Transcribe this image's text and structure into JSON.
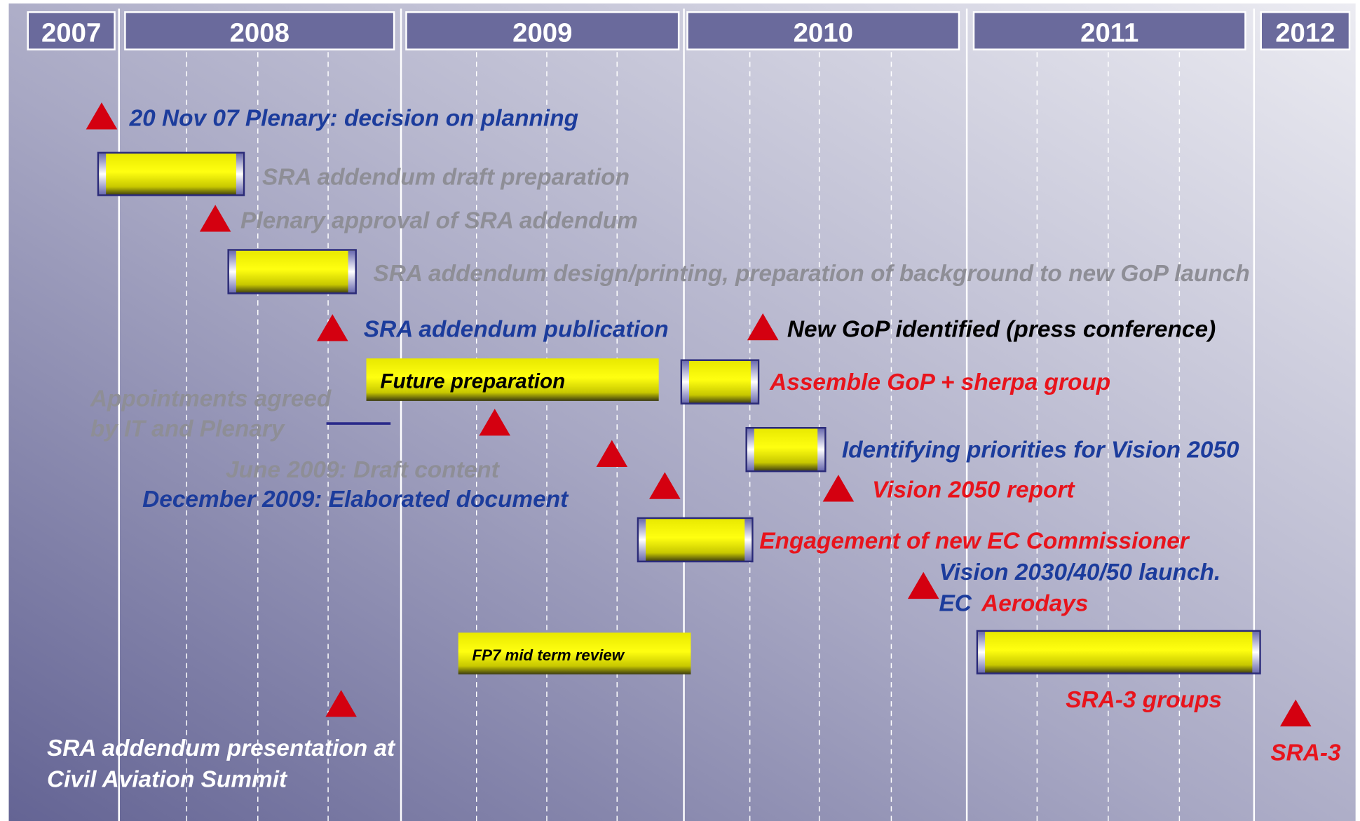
{
  "years": [
    "2007",
    "2008",
    "2009",
    "2010",
    "2011",
    "2012"
  ],
  "events": {
    "plenary_decision": "20 Nov 07 Plenary: decision on planning",
    "draft_preparation": "SRA addendum draft preparation",
    "plenary_approval": "Plenary approval of SRA addendum",
    "design_printing": "SRA addendum design/printing, preparation of background to new GoP launch",
    "publication": "SRA addendum publication",
    "new_gop": "New GoP identified (press conference)",
    "future_preparation": "Future preparation",
    "assemble_gop": "Assemble GoP + sherpa group",
    "appointments": [
      "Appointments agreed",
      "by IT and Plenary"
    ],
    "identifying_priorities": "Identifying priorities for Vision 2050",
    "june_2009": "June 2009: Draft content",
    "december_2009": "December 2009: Elaborated document",
    "vision_report": "Vision 2050 report",
    "engagement": "Engagement of new EC Commissioner",
    "vision_launch": [
      "Vision 2030/40/50 launch.",
      "EC",
      "Aerodays"
    ],
    "fp7_review": "FP7 mid term review",
    "sra3_groups": "SRA-3 groups",
    "presentation": [
      "SRA addendum presentation at",
      "Civil Aviation Summit"
    ],
    "sra3": "SRA-3"
  }
}
